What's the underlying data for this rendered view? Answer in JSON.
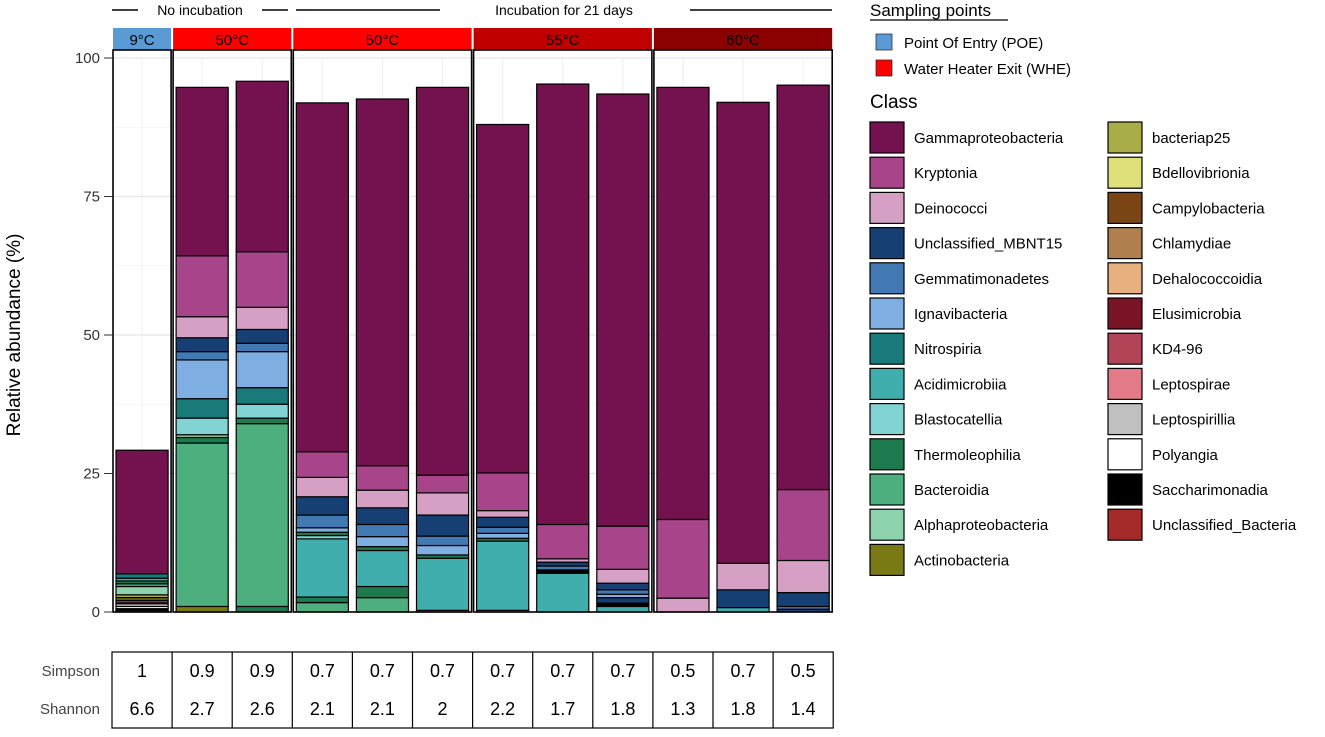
{
  "chart_data": {
    "type": "bar",
    "stacked": true,
    "ylabel": "Relative abundance (%)",
    "ylim": [
      0,
      100
    ],
    "yticks": [
      0,
      25,
      50,
      75,
      100
    ],
    "top_labels": {
      "no_incubation": "No incubation",
      "incubation": "Incubation for 21 days"
    },
    "groups": [
      {
        "label": "9°C",
        "sampling_point": "POE",
        "color": "#5B9BD5",
        "columns": 1
      },
      {
        "label": "50°C",
        "sampling_point": "WHE",
        "color": "#FF0000",
        "columns": 2
      },
      {
        "label": "50°C",
        "sampling_point": "WHE",
        "color": "#FF0000",
        "columns": 3
      },
      {
        "label": "55°C",
        "sampling_point": "WHE",
        "color": "#C00000",
        "columns": 3
      },
      {
        "label": "60°C",
        "sampling_point": "WHE",
        "color": "#8B0000",
        "columns": 3
      }
    ],
    "legend_sampling": {
      "title": "Sampling points",
      "items": [
        {
          "label": "Point Of Entry (POE)",
          "color": "#5B9BD5"
        },
        {
          "label": "Water Heater Exit (WHE)",
          "color": "#FF0000"
        }
      ]
    },
    "legend_class": {
      "title": "Class",
      "items": [
        {
          "label": "Gammaproteobacteria",
          "color": "#74114F"
        },
        {
          "label": "Kryptonia",
          "color": "#A8448A"
        },
        {
          "label": "Deinococci",
          "color": "#D5A0C4"
        },
        {
          "label": "Unclassified_MBNT15",
          "color": "#163F73"
        },
        {
          "label": "Gemmatimonadetes",
          "color": "#4379B3"
        },
        {
          "label": "Ignavibacteria",
          "color": "#7FAEE3"
        },
        {
          "label": "Nitrospiria",
          "color": "#1A7A7A"
        },
        {
          "label": "Acidimicrobiia",
          "color": "#41AEAE"
        },
        {
          "label": "Blastocatellia",
          "color": "#82D4D4"
        },
        {
          "label": "Thermoleophilia",
          "color": "#1D7A4E"
        },
        {
          "label": "Bacteroidia",
          "color": "#4CAF7D"
        },
        {
          "label": "Alphaproteobacteria",
          "color": "#8ED3AE"
        },
        {
          "label": "Actinobacteria",
          "color": "#7A7A14"
        },
        {
          "label": "bacteriap25",
          "color": "#A8AD48"
        },
        {
          "label": "Bdellovibrionia",
          "color": "#E0E07A"
        },
        {
          "label": "Campylobacteria",
          "color": "#7A4415"
        },
        {
          "label": "Chlamydiae",
          "color": "#B07F4E"
        },
        {
          "label": "Dehalococcoidia",
          "color": "#E6B07F"
        },
        {
          "label": "Elusimicrobia",
          "color": "#7A1426"
        },
        {
          "label": "KD4-96",
          "color": "#B34457"
        },
        {
          "label": "Leptospirae",
          "color": "#E37A88"
        },
        {
          "label": "Leptospirillia",
          "color": "#C0C0C0"
        },
        {
          "label": "Polyangia",
          "color": "#FFFFFF"
        },
        {
          "label": "Saccharimonadia",
          "color": "#000000"
        },
        {
          "label": "Unclassified_Bacteria",
          "color": "#A52A2A"
        }
      ]
    },
    "bars": [
      {
        "segments": [
          [
            "Unclassified_Bacteria",
            0.3
          ],
          [
            "Saccharimonadia",
            0.3
          ],
          [
            "Polyangia",
            0.4
          ],
          [
            "Leptospirillia",
            0.5
          ],
          [
            "KD4-96",
            0.3
          ],
          [
            "Dehalococcoidia",
            0.3
          ],
          [
            "Actinobacteria",
            0.5
          ],
          [
            "bacteriap25",
            0.5
          ],
          [
            "Alphaproteobacteria",
            1.5
          ],
          [
            "Bacteroidia",
            0.5
          ],
          [
            "Thermoleophilia",
            0.5
          ],
          [
            "Acidimicrobiia",
            0.5
          ],
          [
            "Nitrospiria",
            0.8
          ],
          [
            "Gammaproteobacteria",
            22.3
          ]
        ]
      },
      {
        "segments": [
          [
            "Actinobacteria",
            1
          ],
          [
            "Bacteroidia",
            29.5
          ],
          [
            "Thermoleophilia",
            1
          ],
          [
            "Alphaproteobacteria",
            0.5
          ],
          [
            "Blastocatellia",
            3
          ],
          [
            "Nitrospiria",
            3.5
          ],
          [
            "Ignavibacteria",
            7
          ],
          [
            "Gemmatimonadetes",
            1.5
          ],
          [
            "Unclassified_MBNT15",
            2.5
          ],
          [
            "Deinococci",
            3.8
          ],
          [
            "Kryptonia",
            11
          ],
          [
            "Gammaproteobacteria",
            30.4
          ]
        ]
      },
      {
        "segments": [
          [
            "Thermoleophilia",
            1
          ],
          [
            "Bacteroidia",
            33
          ],
          [
            "Thermoleophilia",
            1
          ],
          [
            "Blastocatellia",
            2.5
          ],
          [
            "Nitrospiria",
            3
          ],
          [
            "Ignavibacteria",
            6.5
          ],
          [
            "Gemmatimonadetes",
            1.5
          ],
          [
            "Unclassified_MBNT15",
            2.5
          ],
          [
            "Deinococci",
            4
          ],
          [
            "Kryptonia",
            10
          ],
          [
            "Gammaproteobacteria",
            30.8
          ]
        ]
      },
      {
        "segments": [
          [
            "Bacteroidia",
            1.7
          ],
          [
            "Thermoleophilia",
            1
          ],
          [
            "Acidimicrobiia",
            10.5
          ],
          [
            "Blastocatellia",
            0.6
          ],
          [
            "Thermoleophilia",
            0.6
          ],
          [
            "Ignavibacteria",
            0.8
          ],
          [
            "Gemmatimonadetes",
            2.3
          ],
          [
            "Unclassified_MBNT15",
            3.3
          ],
          [
            "Deinococci",
            3.5
          ],
          [
            "Kryptonia",
            4.6
          ],
          [
            "Gammaproteobacteria",
            63
          ]
        ]
      },
      {
        "segments": [
          [
            "Bacteroidia",
            2.6
          ],
          [
            "Thermoleophilia",
            2
          ],
          [
            "Acidimicrobiia",
            6.5
          ],
          [
            "Thermoleophilia",
            0.7
          ],
          [
            "Ignavibacteria",
            1.8
          ],
          [
            "Gemmatimonadetes",
            2.2
          ],
          [
            "Unclassified_MBNT15",
            3
          ],
          [
            "Deinococci",
            3.2
          ],
          [
            "Kryptonia",
            4.4
          ],
          [
            "Gammaproteobacteria",
            66.2
          ]
        ]
      },
      {
        "segments": [
          [
            "Bacteroidia",
            0.3
          ],
          [
            "Acidimicrobiia",
            9.4
          ],
          [
            "Thermoleophilia",
            0.6
          ],
          [
            "Ignavibacteria",
            1.7
          ],
          [
            "Gemmatimonadetes",
            1.7
          ],
          [
            "Unclassified_MBNT15",
            3.8
          ],
          [
            "Deinococci",
            4
          ],
          [
            "Kryptonia",
            3.2
          ],
          [
            "Gammaproteobacteria",
            70
          ]
        ]
      },
      {
        "segments": [
          [
            "Bacteroidia",
            0.3
          ],
          [
            "Acidimicrobiia",
            12.5
          ],
          [
            "Thermoleophilia",
            0.5
          ],
          [
            "Ignavibacteria",
            0.9
          ],
          [
            "Gemmatimonadetes",
            1.1
          ],
          [
            "Unclassified_MBNT15",
            1.8
          ],
          [
            "Deinococci",
            1.2
          ],
          [
            "Kryptonia",
            6.8
          ],
          [
            "Gammaproteobacteria",
            62.9
          ]
        ]
      },
      {
        "segments": [
          [
            "Acidimicrobiia",
            7
          ],
          [
            "Saccharimonadia",
            0.6
          ],
          [
            "Gemmatimonadetes",
            0.7
          ],
          [
            "Unclassified_MBNT15",
            0.7
          ],
          [
            "Deinococci",
            0.6
          ],
          [
            "Kryptonia",
            6.2
          ],
          [
            "Gammaproteobacteria",
            79.5
          ]
        ]
      },
      {
        "segments": [
          [
            "Acidimicrobiia",
            1
          ],
          [
            "Saccharimonadia",
            0.6
          ],
          [
            "Unclassified_MBNT15",
            1
          ],
          [
            "Ignavibacteria",
            0.6
          ],
          [
            "Gemmatimonadetes",
            0.8
          ],
          [
            "Unclassified_MBNT15",
            1.2
          ],
          [
            "Deinococci",
            2.5
          ],
          [
            "Kryptonia",
            7.8
          ],
          [
            "Gammaproteobacteria",
            78
          ]
        ]
      },
      {
        "segments": [
          [
            "Deinococci",
            2.5
          ],
          [
            "Kryptonia",
            14.2
          ],
          [
            "Gammaproteobacteria",
            78
          ]
        ]
      },
      {
        "segments": [
          [
            "Acidimicrobiia",
            0.8
          ],
          [
            "Unclassified_MBNT15",
            3.2
          ],
          [
            "Deinococci",
            4.8
          ],
          [
            "Gammaproteobacteria",
            83.2
          ]
        ]
      },
      {
        "segments": [
          [
            "Unclassified_MBNT15",
            0.5
          ],
          [
            "Gemmatimonadetes",
            0.5
          ],
          [
            "Unclassified_MBNT15",
            2.5
          ],
          [
            "Deinococci",
            5.8
          ],
          [
            "Kryptonia",
            12.8
          ],
          [
            "Gammaproteobacteria",
            73
          ]
        ]
      }
    ],
    "diversity_table": {
      "rows": [
        {
          "label": "Simpson",
          "values": [
            "1",
            "0.9",
            "0.9",
            "0.7",
            "0.7",
            "0.7",
            "0.7",
            "0.7",
            "0.7",
            "0.5",
            "0.7",
            "0.5"
          ]
        },
        {
          "label": "Shannon",
          "values": [
            "6.6",
            "2.7",
            "2.6",
            "2.1",
            "2.1",
            "2",
            "2.2",
            "1.7",
            "1.8",
            "1.3",
            "1.8",
            "1.4"
          ]
        }
      ]
    }
  }
}
